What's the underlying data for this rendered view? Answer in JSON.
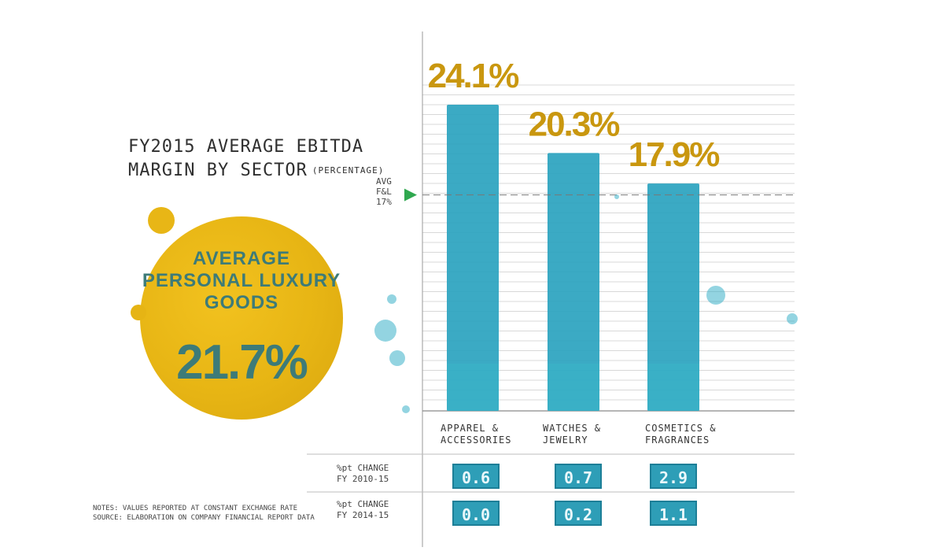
{
  "title": {
    "line1": "FY2015 AVERAGE EBITDA",
    "line2": "MARGIN BY SECTOR",
    "unit": "(PERCENTAGE)"
  },
  "highlight": {
    "lines": [
      "AVERAGE",
      "PERSONAL LUXURY",
      "GOODS"
    ],
    "value": "21.7%"
  },
  "avg_marker": {
    "line1": "AVG",
    "line2": "F&L",
    "line3": "17%"
  },
  "row_labels": {
    "change_2010": {
      "line1": "%pt CHANGE",
      "line2": "FY 2010-15"
    },
    "change_2014": {
      "line1": "%pt CHANGE",
      "line2": "FY 2014-15"
    }
  },
  "notes": {
    "line1": "NOTES: VALUES REPORTED AT CONSTANT EXCHANGE RATE",
    "line2": "SOURCE: ELABORATION ON COMPANY FINANCIAL REPORT DATA"
  },
  "colors": {
    "bar": "#2aa3bf",
    "label": "#c9970f",
    "blob": "#e8b616",
    "marker": "#2fa84f"
  },
  "chart_data": {
    "type": "bar",
    "title": "FY2015 AVERAGE EBITDA MARGIN BY SECTOR (PERCENTAGE)",
    "categories": [
      {
        "line1": "APPAREL &",
        "line2": "ACCESSORIES"
      },
      {
        "line1": "WATCHES &",
        "line2": "JEWELRY"
      },
      {
        "line1": "COSMETICS &",
        "line2": "FRAGRANCES"
      }
    ],
    "values": [
      24.1,
      20.3,
      17.9
    ],
    "value_labels": [
      "24.1%",
      "20.3%",
      "17.9%"
    ],
    "reference_line": {
      "value": 17
    },
    "pt_change_2010_15": [
      "0.6",
      "0.7",
      "2.9"
    ],
    "pt_change_2014_15": [
      "0.0",
      "0.2",
      "1.1"
    ],
    "ylim": [
      0,
      24.1
    ],
    "grid": true
  }
}
